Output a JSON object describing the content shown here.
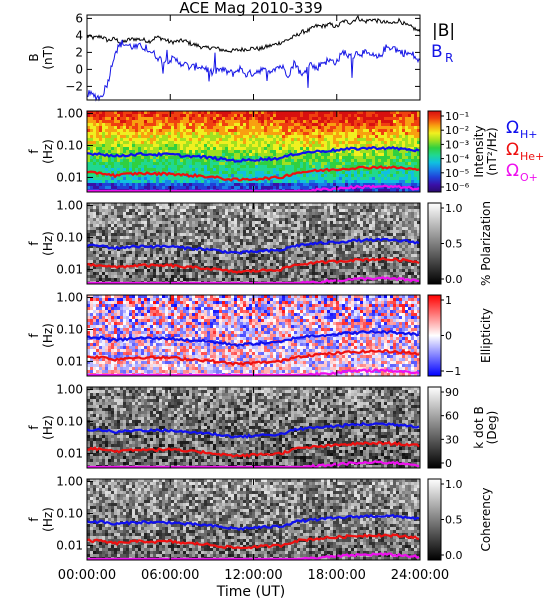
{
  "title": "ACE Mag 2010-339",
  "x_axis": {
    "label": "Time (UT)",
    "ticks": [
      "00:00:00",
      "06:00:00",
      "12:00:00",
      "18:00:00",
      "24:00:00"
    ],
    "tick_hours": [
      0,
      6,
      12,
      18,
      24
    ],
    "range_hours": [
      0,
      24
    ]
  },
  "colors": {
    "B_total": "#000000",
    "B_R": "#1414e6",
    "H_plus": "#1010ee",
    "He_plus": "#ee1010",
    "O_plus": "#ee10ee",
    "frame": "#000000"
  },
  "legend": {
    "B_total": "|B|",
    "B_R": "B",
    "B_R_subscript": "R",
    "omega": "Ω",
    "H_plus": "H+",
    "He_plus": "He+",
    "O_plus": "O+"
  },
  "chart_data": [
    {
      "type": "line",
      "panel": "field",
      "ylabel": "B",
      "ylabel_unit": "(nT)",
      "ylim": [
        -3.6,
        6.4
      ],
      "yticks": [
        6,
        4,
        2,
        0,
        -2
      ],
      "x_hours": [
        0,
        0.5,
        1,
        1.5,
        2,
        2.5,
        3,
        3.5,
        4,
        4.5,
        5,
        5.5,
        6,
        6.5,
        7,
        7.5,
        8,
        8.5,
        9,
        9.5,
        10,
        10.5,
        11,
        11.5,
        12,
        12.5,
        13,
        13.5,
        14,
        14.5,
        15,
        15.5,
        16,
        16.5,
        17,
        17.5,
        18,
        18.5,
        19,
        19.5,
        20,
        20.5,
        21,
        21.5,
        22,
        22.5,
        23,
        23.5,
        24
      ],
      "series": [
        {
          "name": "|B|",
          "values": [
            3.9,
            3.7,
            3.9,
            3.4,
            3.6,
            3.1,
            3.5,
            3.6,
            3.5,
            3.3,
            3.8,
            3.6,
            3.2,
            3.3,
            3.4,
            3.0,
            2.8,
            2.5,
            2.6,
            2.4,
            2.2,
            2.2,
            2.3,
            2.4,
            2.5,
            2.4,
            2.7,
            2.9,
            3.2,
            3.5,
            3.9,
            4.4,
            4.6,
            5.1,
            5.1,
            5.3,
            5.0,
            5.7,
            5.5,
            6.1,
            5.6,
            5.9,
            5.7,
            5.5,
            5.4,
            5.8,
            5.2,
            4.9,
            4.4
          ]
        },
        {
          "name": "B_R",
          "values": [
            -2.8,
            -3.1,
            -3.3,
            -1.5,
            2.0,
            3.1,
            2.8,
            2.6,
            2.7,
            2.2,
            1.6,
            0.9,
            1.2,
            1.0,
            0.6,
            0.2,
            0.4,
            0.2,
            -0.4,
            0.0,
            -0.2,
            -0.5,
            0.1,
            -0.6,
            -0.4,
            0.0,
            -0.3,
            0.2,
            0.4,
            -0.6,
            0.9,
            -0.9,
            0.8,
            0.1,
            0.9,
            1.0,
            0.9,
            2.1,
            1.4,
            2.0,
            1.9,
            1.6,
            1.3,
            2.5,
            2.7,
            2.1,
            1.9,
            1.7,
            0.8
          ]
        }
      ]
    },
    {
      "type": "heatmap",
      "panel": "intensity",
      "ylabel": "f",
      "ylabel_unit": "(Hz)",
      "yscale": "log",
      "ylim": [
        0.0035,
        1.2
      ],
      "yticks": [
        "1.00",
        "0.10",
        "0.01"
      ],
      "ytick_values": [
        1.0,
        0.1,
        0.01
      ],
      "colorbar": {
        "label": "Intensity",
        "unit": "(nT²/Hz)",
        "ticks": [
          "10⁻¹",
          "10⁻²",
          "10⁻³",
          "10⁻⁴",
          "10⁻⁵",
          "10⁻⁶"
        ],
        "scale": "log",
        "range": [
          1e-06,
          0.1
        ],
        "palette": "rainbow"
      }
    },
    {
      "type": "heatmap",
      "panel": "polarization",
      "ylabel": "f",
      "ylabel_unit": "(Hz)",
      "yscale": "log",
      "ylim": [
        0.0035,
        1.2
      ],
      "yticks": [
        "1.00",
        "0.10",
        "0.01"
      ],
      "colorbar": {
        "label": "% Polarization",
        "ticks": [
          "1.0",
          "0.5",
          "0.0"
        ],
        "range": [
          0,
          1
        ],
        "palette": "gray"
      }
    },
    {
      "type": "heatmap",
      "panel": "ellipticity",
      "ylabel": "f",
      "ylabel_unit": "(Hz)",
      "yscale": "log",
      "ylim": [
        0.0035,
        1.2
      ],
      "yticks": [
        "1.00",
        "0.10",
        "0.01"
      ],
      "colorbar": {
        "label": "Ellipticity",
        "ticks": [
          "1",
          "0",
          "−1"
        ],
        "range": [
          -1,
          1
        ],
        "palette": "blue-white-red"
      }
    },
    {
      "type": "heatmap",
      "panel": "kdotb",
      "ylabel": "f",
      "ylabel_unit": "(Hz)",
      "yscale": "log",
      "ylim": [
        0.0035,
        1.2
      ],
      "yticks": [
        "1.00",
        "0.10",
        "0.01"
      ],
      "colorbar": {
        "label": "k dot B",
        "unit": "(Deg)",
        "ticks": [
          "90",
          "60",
          "30",
          "0"
        ],
        "range": [
          0,
          90
        ],
        "palette": "gray"
      }
    },
    {
      "type": "heatmap",
      "panel": "coherency",
      "ylabel": "f",
      "ylabel_unit": "(Hz)",
      "yscale": "log",
      "ylim": [
        0.0035,
        1.2
      ],
      "yticks": [
        "1.00",
        "0.10",
        "0.01"
      ],
      "colorbar": {
        "label": "Coherency",
        "ticks": [
          "1.0",
          "0.5",
          "0.0"
        ],
        "range": [
          0,
          1
        ],
        "palette": "gray"
      }
    }
  ],
  "gyrofrequencies": {
    "x_hours": [
      0,
      1,
      2,
      3,
      4,
      5,
      6,
      7,
      8,
      9,
      10,
      11,
      12,
      13,
      14,
      15,
      16,
      17,
      18,
      19,
      20,
      21,
      22,
      23,
      24
    ],
    "H_plus_hz": [
      0.056,
      0.055,
      0.046,
      0.051,
      0.054,
      0.052,
      0.053,
      0.047,
      0.045,
      0.041,
      0.036,
      0.033,
      0.036,
      0.038,
      0.04,
      0.055,
      0.062,
      0.067,
      0.072,
      0.078,
      0.082,
      0.084,
      0.082,
      0.077,
      0.068
    ],
    "He_plus_hz": [
      0.014,
      0.0138,
      0.0115,
      0.0128,
      0.0135,
      0.013,
      0.0133,
      0.0118,
      0.0113,
      0.0103,
      0.009,
      0.0083,
      0.009,
      0.0095,
      0.01,
      0.0138,
      0.0155,
      0.0168,
      0.018,
      0.0195,
      0.0205,
      0.021,
      0.0205,
      0.0193,
      0.017
    ],
    "O_plus_hz": [
      0.0035,
      0.0035,
      0.0035,
      0.0035,
      0.0035,
      0.0035,
      0.0035,
      0.0035,
      0.0035,
      0.0035,
      0.0035,
      0.0035,
      0.0035,
      0.0035,
      0.0035,
      0.0035,
      0.0039,
      0.0042,
      0.0045,
      0.0049,
      0.0051,
      0.0053,
      0.0051,
      0.0048,
      0.0043
    ]
  }
}
